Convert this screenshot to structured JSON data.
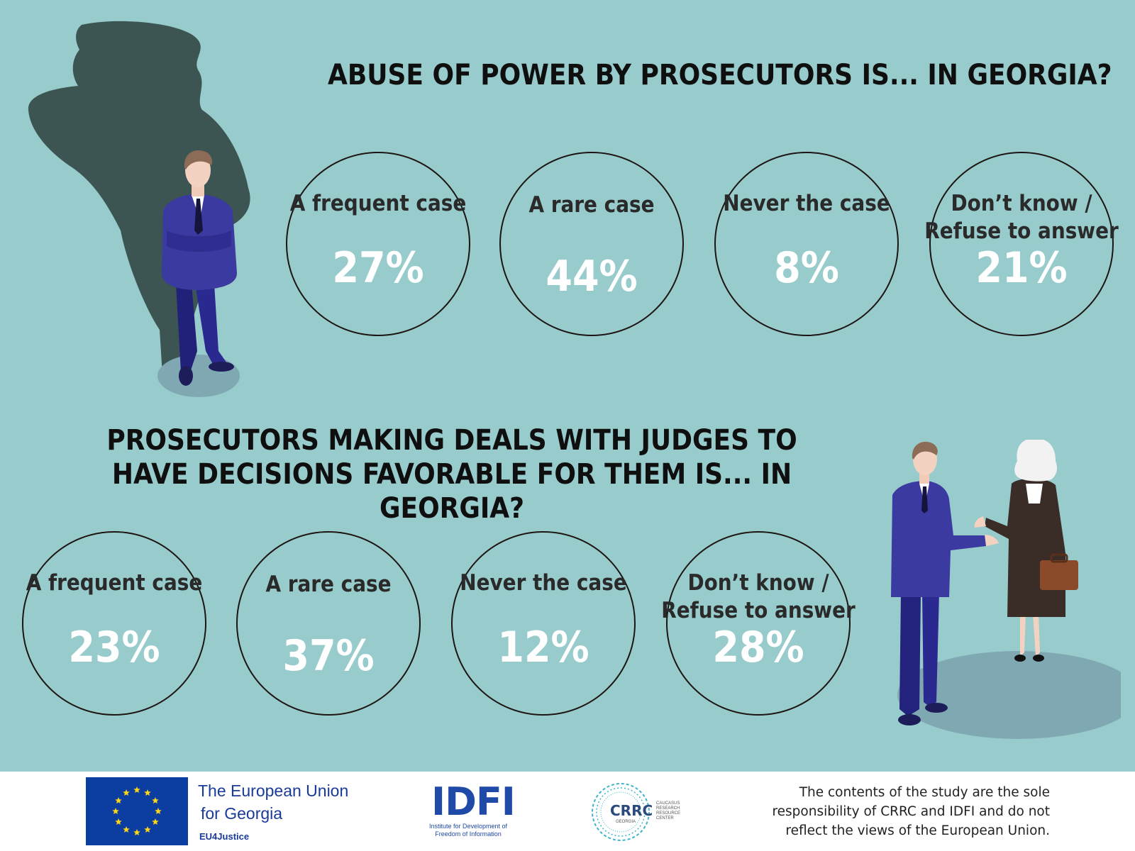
{
  "question1": {
    "title": "ABUSE OF POWER BY PROSECUTORS IS... IN GEORGIA?",
    "answers": [
      {
        "label": "A frequent case",
        "value_text": "27%"
      },
      {
        "label": "A rare case",
        "value_text": "44%"
      },
      {
        "label": "Never the case",
        "value_text": "8%"
      },
      {
        "label": "Don’t know / Refuse to answer",
        "value_text": "21%"
      }
    ]
  },
  "question2": {
    "title": "PROSECUTORS MAKING DEALS WITH JUDGES TO HAVE DECISIONS FAVORABLE FOR THEM IS... IN GEORGIA?",
    "answers": [
      {
        "label": "A frequent case",
        "value_text": "23%"
      },
      {
        "label": "A rare case",
        "value_text": "37%"
      },
      {
        "label": "Never the case",
        "value_text": "12%"
      },
      {
        "label": "Don’t know / Refuse to answer",
        "value_text": "28%"
      }
    ]
  },
  "footer": {
    "eu_line1": "The European Union",
    "eu_line2": "for Georgia",
    "eu_sub": "EU4Justice",
    "idfi_logo": "IDFI",
    "idfi_sub": "Institute for Development of Freedom of Information",
    "crrc_logo": "CRRC",
    "crrc_side": "CAUCASUS RESEARCH RESOURCE CENTER",
    "crrc_geo": "GEORGIA",
    "disclaimer": "The contents of the study are the sole responsibility of CRRC and IDFI and do not reflect the views of the European Union."
  },
  "colors": {
    "background": "#98cbcc",
    "suit": "#3b3aa0",
    "shadow": "#3d5555",
    "circle_border": "#1c1512",
    "value_text": "#ffffff"
  },
  "chart_data": [
    {
      "type": "table",
      "title": "ABUSE OF POWER BY PROSECUTORS IS... IN GEORGIA?",
      "categories": [
        "A frequent case",
        "A rare case",
        "Never the case",
        "Don’t know / Refuse to answer"
      ],
      "values": [
        27,
        44,
        8,
        21
      ],
      "unit": "%"
    },
    {
      "type": "table",
      "title": "PROSECUTORS MAKING DEALS WITH JUDGES TO HAVE DECISIONS FAVORABLE FOR THEM IS... IN GEORGIA?",
      "categories": [
        "A frequent case",
        "A rare case",
        "Never the case",
        "Don’t know / Refuse to answer"
      ],
      "values": [
        23,
        37,
        12,
        28
      ],
      "unit": "%"
    }
  ]
}
